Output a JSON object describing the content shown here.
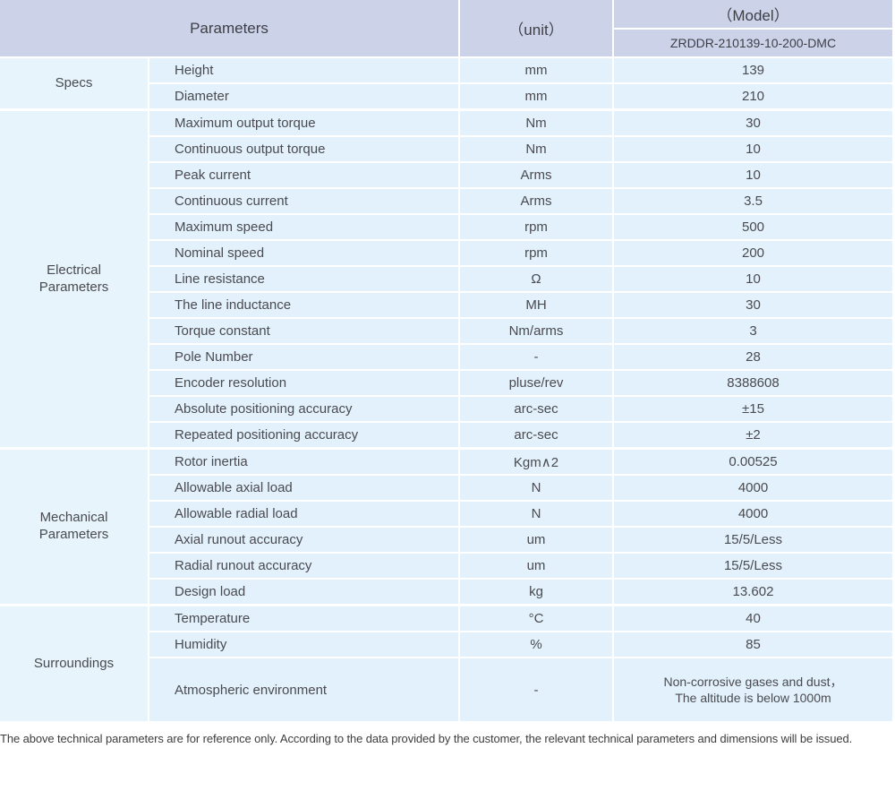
{
  "colors": {
    "header_bg": "#ccd3e9",
    "cell_bg": "#e2f1fb",
    "group_bg": "#e7f4fc"
  },
  "header": {
    "parameters_label": "Parameters",
    "unit_label": "（unit）",
    "model_label": "（Model）",
    "model_value": "ZRDDR-210139-10-200-DMC"
  },
  "sections": [
    {
      "group": "Specs",
      "rows": [
        {
          "name": "Height",
          "unit": "mm",
          "value": "139"
        },
        {
          "name": "Diameter",
          "unit": "mm",
          "value": "210"
        }
      ]
    },
    {
      "group": "Electrical Parameters",
      "rows": [
        {
          "name": "Maximum output torque",
          "unit": "Nm",
          "value": "30"
        },
        {
          "name": "Continuous output torque",
          "unit": "Nm",
          "value": "10"
        },
        {
          "name": "Peak current",
          "unit": "Arms",
          "value": "10"
        },
        {
          "name": "Continuous current",
          "unit": "Arms",
          "value": "3.5"
        },
        {
          "name": "Maximum speed",
          "unit": "rpm",
          "value": "500"
        },
        {
          "name": "Nominal speed",
          "unit": "rpm",
          "value": "200"
        },
        {
          "name": "Line resistance",
          "unit": "Ω",
          "value": "10"
        },
        {
          "name": "The line inductance",
          "unit": "MH",
          "value": "30"
        },
        {
          "name": "Torque constant",
          "unit": "Nm/arms",
          "value": "3"
        },
        {
          "name": "Pole Number",
          "unit": "-",
          "value": "28"
        },
        {
          "name": "Encoder resolution",
          "unit": "pluse/rev",
          "value": "8388608"
        },
        {
          "name": "Absolute positioning accuracy",
          "unit": "arc-sec",
          "value": "±15"
        },
        {
          "name": "Repeated positioning accuracy",
          "unit": "arc-sec",
          "value": "±2"
        }
      ]
    },
    {
      "group": "Mechanical Parameters",
      "rows": [
        {
          "name": "Rotor inertia",
          "unit": "Kgm∧2",
          "value": "0.00525"
        },
        {
          "name": "Allowable axial load",
          "unit": "N",
          "value": "4000"
        },
        {
          "name": "Allowable radial load",
          "unit": "N",
          "value": "4000"
        },
        {
          "name": "Axial runout accuracy",
          "unit": "um",
          "value": "15/5/Less"
        },
        {
          "name": "Radial runout accuracy",
          "unit": "um",
          "value": "15/5/Less"
        },
        {
          "name": "Design load",
          "unit": "kg",
          "value": "13.602"
        }
      ]
    },
    {
      "group": "Surroundings",
      "rows": [
        {
          "name": "Temperature",
          "unit": "°C",
          "value": "40"
        },
        {
          "name": "Humidity",
          "unit": "%",
          "value": "85"
        },
        {
          "name": "Atmospheric environment",
          "unit": "-",
          "value": "Non-corrosive gases and dust，\nThe altitude is below 1000m",
          "tall": true
        }
      ]
    }
  ],
  "footer_note": "The above technical parameters are for reference only. According to the data provided by the customer, the relevant technical parameters and dimensions will be issued."
}
